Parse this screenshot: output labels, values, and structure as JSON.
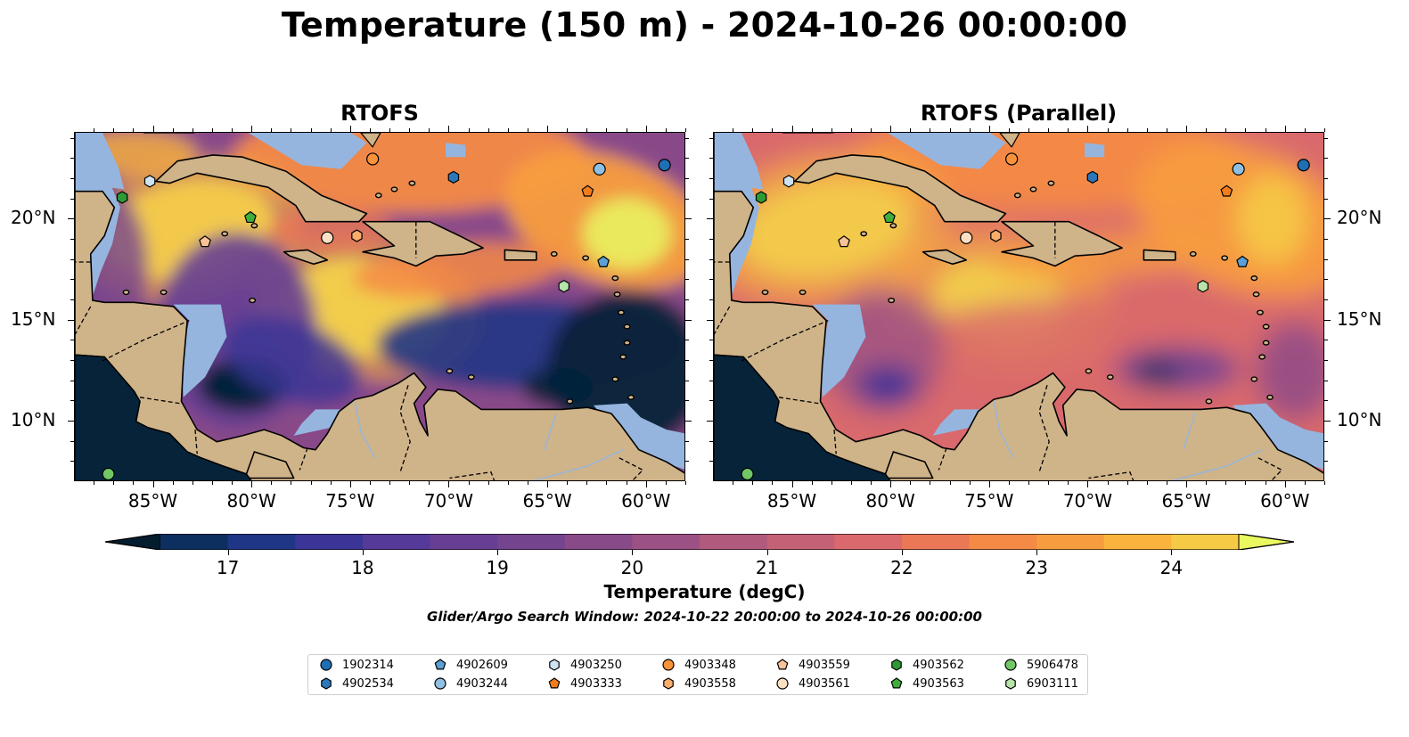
{
  "figure": {
    "suptitle": "Temperature (150 m) - 2024-10-26 00:00:00",
    "search_window": "Glider/Argo Search Window: 2024-10-22 20:00:00 to 2024-10-26 00:00:00"
  },
  "maps": [
    {
      "title": "RTOFS",
      "variant": "main"
    },
    {
      "title": "RTOFS (Parallel)",
      "variant": "parallel"
    }
  ],
  "axes": {
    "lon_range": [
      -89,
      -58
    ],
    "lat_range": [
      7,
      24.3
    ],
    "x_ticks": [
      "85°W",
      "80°W",
      "75°W",
      "70°W",
      "65°W",
      "60°W"
    ],
    "y_ticks": [
      "20°N",
      "15°N",
      "10°N"
    ]
  },
  "colorbar": {
    "label": "Temperature (degC)",
    "ticks": [
      "17",
      "18",
      "19",
      "20",
      "21",
      "22",
      "23",
      "24"
    ],
    "range": [
      16.5,
      24.5
    ],
    "extend": "both",
    "colors": [
      "#06233a",
      "#0d2f5f",
      "#1f3585",
      "#3a3596",
      "#553a99",
      "#663f94",
      "#75448f",
      "#894a89",
      "#9c5184",
      "#b05a7d",
      "#c46176",
      "#d9696c",
      "#ea7756",
      "#f48a46",
      "#f89d3f",
      "#fab33d",
      "#f6ca45",
      "#e9ec5f"
    ],
    "under_color": "#041d2e",
    "over_color": "#e9f95f"
  },
  "legend": {
    "items": [
      {
        "label": "1902314",
        "marker": "circle",
        "color": "#1f6fb4"
      },
      {
        "label": "4902534",
        "marker": "hexagon",
        "color": "#2b77b9"
      },
      {
        "label": "4902609",
        "marker": "pentagon",
        "color": "#5aa0d4"
      },
      {
        "label": "4903244",
        "marker": "circle",
        "color": "#8fc0e3"
      },
      {
        "label": "4903250",
        "marker": "hexagon",
        "color": "#cde3f3"
      },
      {
        "label": "4903333",
        "marker": "pentagon",
        "color": "#f37d1a"
      },
      {
        "label": "4903348",
        "marker": "circle",
        "color": "#f7923a"
      },
      {
        "label": "4903558",
        "marker": "hexagon",
        "color": "#f9ad6a"
      },
      {
        "label": "4903559",
        "marker": "pentagon",
        "color": "#f9c398"
      },
      {
        "label": "4903561",
        "marker": "circle",
        "color": "#fce0c4"
      },
      {
        "label": "4903562",
        "marker": "hexagon",
        "color": "#2d9a35"
      },
      {
        "label": "4903563",
        "marker": "pentagon",
        "color": "#3fae3d"
      },
      {
        "label": "5906478",
        "marker": "circle",
        "color": "#71c666"
      },
      {
        "label": "6903111",
        "marker": "hexagon",
        "color": "#b6e4aa"
      }
    ]
  },
  "floats": [
    {
      "id": "1902314",
      "lon": -59.1,
      "lat": 22.7
    },
    {
      "id": "4902534",
      "lon": -69.8,
      "lat": 22.1
    },
    {
      "id": "4902609",
      "lon": -62.2,
      "lat": 17.9
    },
    {
      "id": "4903244",
      "lon": -62.4,
      "lat": 22.5
    },
    {
      "id": "4903250",
      "lon": -85.2,
      "lat": 21.9
    },
    {
      "id": "4903333",
      "lon": -63.0,
      "lat": 21.4
    },
    {
      "id": "4903348",
      "lon": -73.9,
      "lat": 23.0
    },
    {
      "id": "4903558",
      "lon": -74.7,
      "lat": 19.2
    },
    {
      "id": "4903559",
      "lon": -82.4,
      "lat": 18.9
    },
    {
      "id": "4903561",
      "lon": -76.2,
      "lat": 19.1
    },
    {
      "id": "4903562",
      "lon": -86.6,
      "lat": 21.1
    },
    {
      "id": "4903563",
      "lon": -80.1,
      "lat": 20.1
    },
    {
      "id": "5906478",
      "lon": -87.3,
      "lat": 7.4
    },
    {
      "id": "6903111",
      "lon": -64.2,
      "lat": 16.7
    }
  ]
}
